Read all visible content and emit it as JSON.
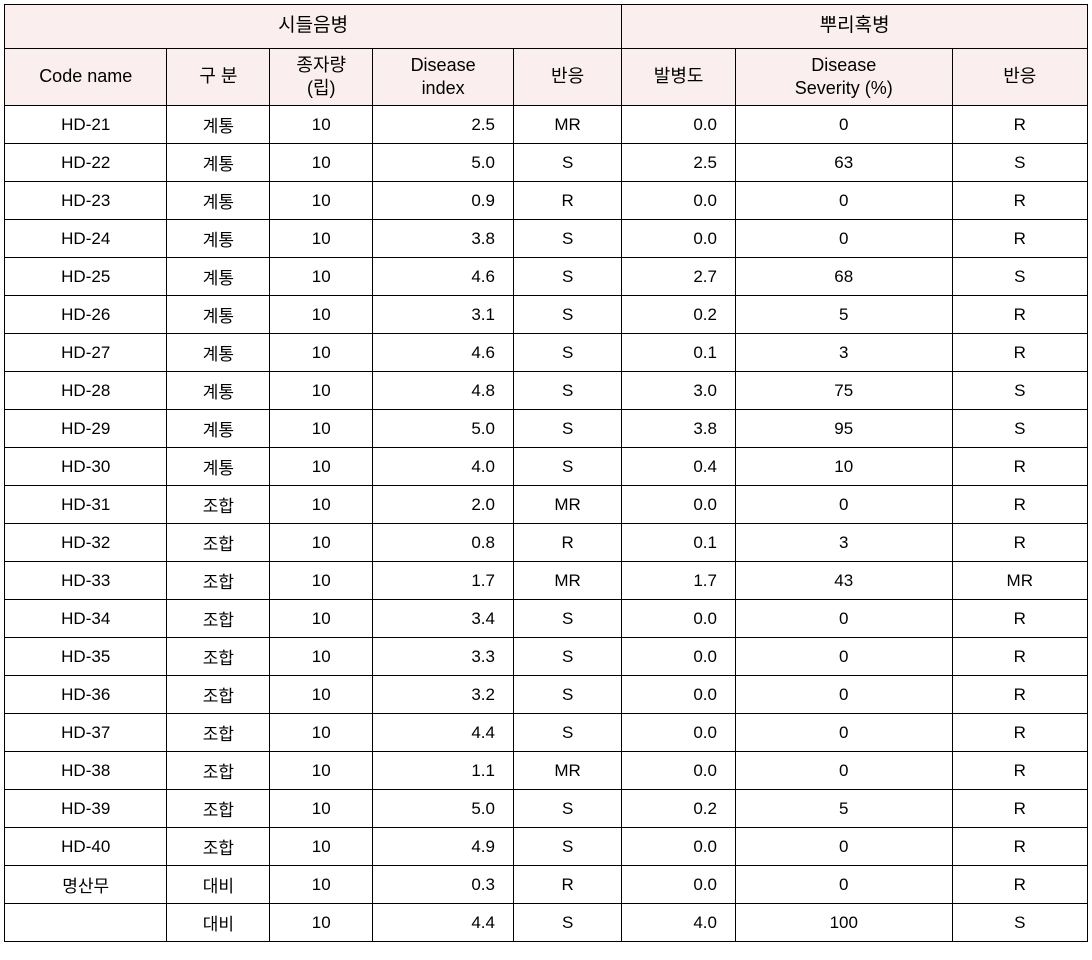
{
  "header": {
    "group1": "시들음병",
    "group2": "뿌리혹병",
    "cols": {
      "code": "Code name",
      "gubun": "구 분",
      "seed": "종자량\n(립)",
      "dindex": "Disease\nindex",
      "react1": "반응",
      "incidence": "발병도",
      "severity": "Disease\nSeverity (%)",
      "react2": "반응"
    }
  },
  "rows": [
    {
      "code": "HD-21",
      "gubun": "계통",
      "seed": "10",
      "dindex": "2.5",
      "react1": "MR",
      "incidence": "0.0",
      "severity": "0",
      "react2": "R"
    },
    {
      "code": "HD-22",
      "gubun": "계통",
      "seed": "10",
      "dindex": "5.0",
      "react1": "S",
      "incidence": "2.5",
      "severity": "63",
      "react2": "S"
    },
    {
      "code": "HD-23",
      "gubun": "계통",
      "seed": "10",
      "dindex": "0.9",
      "react1": "R",
      "incidence": "0.0",
      "severity": "0",
      "react2": "R"
    },
    {
      "code": "HD-24",
      "gubun": "계통",
      "seed": "10",
      "dindex": "3.8",
      "react1": "S",
      "incidence": "0.0",
      "severity": "0",
      "react2": "R"
    },
    {
      "code": "HD-25",
      "gubun": "계통",
      "seed": "10",
      "dindex": "4.6",
      "react1": "S",
      "incidence": "2.7",
      "severity": "68",
      "react2": "S"
    },
    {
      "code": "HD-26",
      "gubun": "계통",
      "seed": "10",
      "dindex": "3.1",
      "react1": "S",
      "incidence": "0.2",
      "severity": "5",
      "react2": "R"
    },
    {
      "code": "HD-27",
      "gubun": "계통",
      "seed": "10",
      "dindex": "4.6",
      "react1": "S",
      "incidence": "0.1",
      "severity": "3",
      "react2": "R"
    },
    {
      "code": "HD-28",
      "gubun": "계통",
      "seed": "10",
      "dindex": "4.8",
      "react1": "S",
      "incidence": "3.0",
      "severity": "75",
      "react2": "S"
    },
    {
      "code": "HD-29",
      "gubun": "계통",
      "seed": "10",
      "dindex": "5.0",
      "react1": "S",
      "incidence": "3.8",
      "severity": "95",
      "react2": "S"
    },
    {
      "code": "HD-30",
      "gubun": "계통",
      "seed": "10",
      "dindex": "4.0",
      "react1": "S",
      "incidence": "0.4",
      "severity": "10",
      "react2": "R"
    },
    {
      "code": "HD-31",
      "gubun": "조합",
      "seed": "10",
      "dindex": "2.0",
      "react1": "MR",
      "incidence": "0.0",
      "severity": "0",
      "react2": "R"
    },
    {
      "code": "HD-32",
      "gubun": "조합",
      "seed": "10",
      "dindex": "0.8",
      "react1": "R",
      "incidence": "0.1",
      "severity": "3",
      "react2": "R"
    },
    {
      "code": "HD-33",
      "gubun": "조합",
      "seed": "10",
      "dindex": "1.7",
      "react1": "MR",
      "incidence": "1.7",
      "severity": "43",
      "react2": "MR"
    },
    {
      "code": "HD-34",
      "gubun": "조합",
      "seed": "10",
      "dindex": "3.4",
      "react1": "S",
      "incidence": "0.0",
      "severity": "0",
      "react2": "R"
    },
    {
      "code": "HD-35",
      "gubun": "조합",
      "seed": "10",
      "dindex": "3.3",
      "react1": "S",
      "incidence": "0.0",
      "severity": "0",
      "react2": "R"
    },
    {
      "code": "HD-36",
      "gubun": "조합",
      "seed": "10",
      "dindex": "3.2",
      "react1": "S",
      "incidence": "0.0",
      "severity": "0",
      "react2": "R"
    },
    {
      "code": "HD-37",
      "gubun": "조합",
      "seed": "10",
      "dindex": "4.4",
      "react1": "S",
      "incidence": "0.0",
      "severity": "0",
      "react2": "R"
    },
    {
      "code": "HD-38",
      "gubun": "조합",
      "seed": "10",
      "dindex": "1.1",
      "react1": "MR",
      "incidence": "0.0",
      "severity": "0",
      "react2": "R"
    },
    {
      "code": "HD-39",
      "gubun": "조합",
      "seed": "10",
      "dindex": "5.0",
      "react1": "S",
      "incidence": "0.2",
      "severity": "5",
      "react2": "R"
    },
    {
      "code": "HD-40",
      "gubun": "조합",
      "seed": "10",
      "dindex": "4.9",
      "react1": "S",
      "incidence": "0.0",
      "severity": "0",
      "react2": "R"
    },
    {
      "code": "명산무",
      "gubun": "대비",
      "seed": "10",
      "dindex": "0.3",
      "react1": "R",
      "incidence": "0.0",
      "severity": "0",
      "react2": "R"
    },
    {
      "code": "",
      "gubun": "대비",
      "seed": "10",
      "dindex": "4.4",
      "react1": "S",
      "incidence": "4.0",
      "severity": "100",
      "react2": "S"
    }
  ],
  "style": {
    "header_bg": "#fbeeee",
    "border_color": "#000000",
    "body_font_size": 17,
    "header_font_size": 18
  }
}
